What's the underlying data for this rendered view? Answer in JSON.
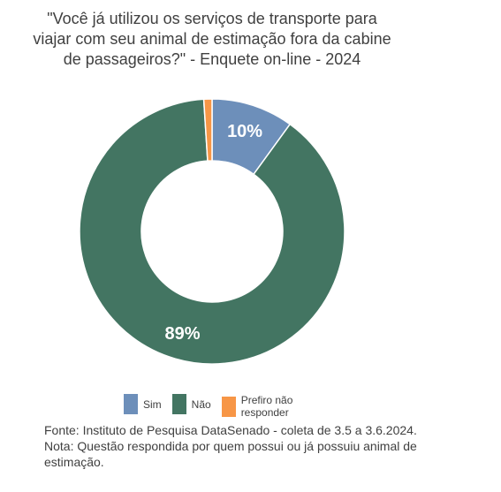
{
  "chart_data": {
    "type": "pie",
    "variant": "donut",
    "title_lines": [
      "\"Você já utilizou os serviços de transporte para",
      "viajar com seu animal de estimação fora da cabine",
      "de passageiros?\" - Enquete on-line - 2024"
    ],
    "categories": [
      "Sim",
      "Não",
      "Prefiro não responder"
    ],
    "values": [
      10,
      89,
      1
    ],
    "data_labels": [
      "10%",
      "89%",
      ""
    ],
    "colors": [
      "#6d8fba",
      "#437562",
      "#f79646"
    ],
    "legend_position": "bottom",
    "legend_lines": [
      [
        "Sim"
      ],
      [
        "Não"
      ],
      [
        "Prefiro não",
        "responder"
      ]
    ]
  },
  "footer": {
    "source": "Fonte: Instituto de Pesquisa DataSenado - coleta de 3.5 a 3.6.2024.",
    "note_lines": [
      "Nota: Questão respondida por quem possui ou já possuiu animal de",
      "estimação."
    ]
  }
}
